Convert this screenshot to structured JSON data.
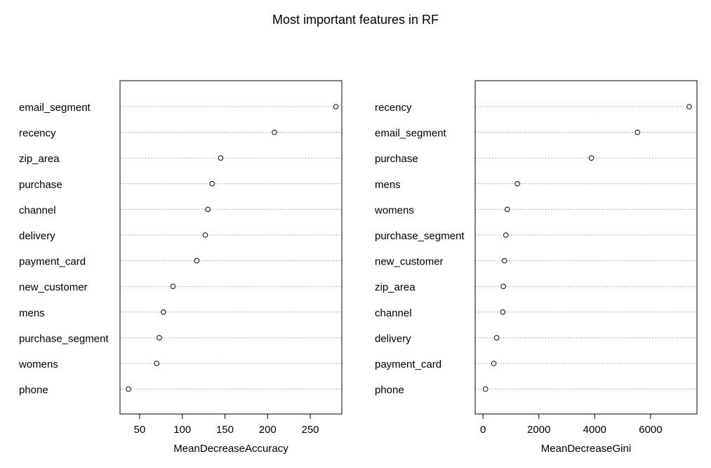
{
  "title": "Most important features in RF",
  "chart_data": [
    {
      "type": "scatter",
      "subtype": "dotchart",
      "xlabel": "MeanDecreaseAccuracy",
      "xticks": [
        50,
        100,
        150,
        200,
        250
      ],
      "xlim": [
        27,
        287
      ],
      "grid": "dotted horizontal per feature",
      "features": [
        "email_segment",
        "recency",
        "zip_area",
        "purchase",
        "channel",
        "delivery",
        "payment_card",
        "new_customer",
        "mens",
        "purchase_segment",
        "womens",
        "phone"
      ],
      "values": [
        280,
        208,
        145,
        135,
        130,
        127,
        117,
        89,
        78,
        73,
        70,
        37
      ]
    },
    {
      "type": "scatter",
      "subtype": "dotchart",
      "xlabel": "MeanDecreaseGini",
      "xticks": [
        0,
        2000,
        4000,
        6000
      ],
      "xlim": [
        -280,
        7660
      ],
      "grid": "dotted horizontal per feature",
      "features": [
        "recency",
        "email_segment",
        "purchase",
        "mens",
        "womens",
        "purchase_segment",
        "new_customer",
        "zip_area",
        "channel",
        "delivery",
        "payment_card",
        "phone"
      ],
      "values": [
        7380,
        5530,
        3880,
        1230,
        870,
        820,
        770,
        730,
        710,
        490,
        390,
        90
      ]
    }
  ]
}
